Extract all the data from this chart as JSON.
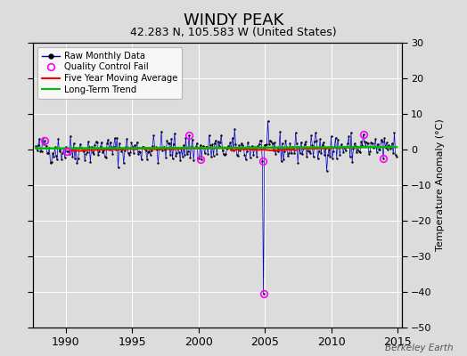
{
  "title": "WINDY PEAK",
  "subtitle": "42.283 N, 105.583 W (United States)",
  "ylabel": "Temperature Anomaly (°C)",
  "watermark": "Berkeley Earth",
  "xlim": [
    1987.5,
    2015.3
  ],
  "ylim": [
    -50,
    30
  ],
  "yticks": [
    -50,
    -40,
    -30,
    -20,
    -10,
    0,
    10,
    20,
    30
  ],
  "xticks": [
    1990,
    1995,
    2000,
    2005,
    2010,
    2015
  ],
  "bg_color": "#dcdcdc",
  "grid_color": "#ffffff",
  "raw_line_color": "#0000cc",
  "raw_marker_color": "#000000",
  "qc_marker_color": "#ff00ff",
  "moving_avg_color": "#ff0000",
  "trend_color": "#00bb00",
  "seed": 42,
  "start_year": 1987.75,
  "end_year": 2014.92,
  "noise_scale": 2.0,
  "outlier_time": 2004.92,
  "outlier_val": -40.5,
  "outlier_pre_time": 2004.83,
  "outlier_pre_val": -3.2,
  "qc_points_x": [
    1988.42,
    1990.08,
    1999.25,
    2000.17,
    2004.83,
    2004.92,
    2012.42,
    2013.92
  ],
  "qc_points_y": [
    2.5,
    -0.5,
    4.0,
    -2.8,
    -3.2,
    -40.5,
    4.2,
    -2.5
  ]
}
